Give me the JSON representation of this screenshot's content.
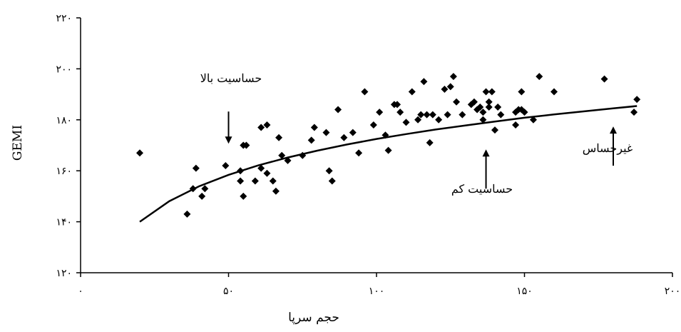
{
  "chart_data": {
    "type": "scatter",
    "xlabel": "حجم سرپا",
    "ylabel": "GEMI",
    "xlim": [
      0,
      200
    ],
    "ylim": [
      120,
      220
    ],
    "x_ticks": [
      0,
      50,
      100,
      150,
      200
    ],
    "y_ticks": [
      120,
      140,
      160,
      180,
      200,
      220
    ],
    "x_tick_labels": [
      "۰",
      "۵۰",
      "۱۰۰",
      "۱۵۰",
      "۲۰۰"
    ],
    "y_tick_labels": [
      "۱۲۰",
      "۱۴۰",
      "۱۶۰",
      "۱۸۰",
      "۲۰۰",
      "۲۲۰"
    ],
    "grid": false,
    "marker": "diamond",
    "points": [
      [
        20,
        167
      ],
      [
        36,
        143
      ],
      [
        38,
        153
      ],
      [
        39,
        161
      ],
      [
        41,
        150
      ],
      [
        42,
        153
      ],
      [
        49,
        162
      ],
      [
        54,
        160
      ],
      [
        54,
        156
      ],
      [
        55,
        150
      ],
      [
        55,
        170
      ],
      [
        56,
        170
      ],
      [
        59,
        156
      ],
      [
        61,
        177
      ],
      [
        61,
        161
      ],
      [
        63,
        178
      ],
      [
        63,
        159
      ],
      [
        65,
        156
      ],
      [
        66,
        152
      ],
      [
        67,
        173
      ],
      [
        68,
        166
      ],
      [
        70,
        164
      ],
      [
        75,
        166
      ],
      [
        78,
        172
      ],
      [
        79,
        177
      ],
      [
        83,
        175
      ],
      [
        84,
        160
      ],
      [
        85,
        156
      ],
      [
        87,
        184
      ],
      [
        89,
        173
      ],
      [
        92,
        175
      ],
      [
        94,
        167
      ],
      [
        96,
        191
      ],
      [
        99,
        178
      ],
      [
        101,
        183
      ],
      [
        103,
        174
      ],
      [
        104,
        168
      ],
      [
        106,
        186
      ],
      [
        107,
        186
      ],
      [
        108,
        183
      ],
      [
        110,
        179
      ],
      [
        112,
        191
      ],
      [
        114,
        180
      ],
      [
        115,
        182
      ],
      [
        116,
        195
      ],
      [
        117,
        182
      ],
      [
        118,
        171
      ],
      [
        119,
        182
      ],
      [
        121,
        180
      ],
      [
        123,
        192
      ],
      [
        124,
        182
      ],
      [
        125,
        193
      ],
      [
        126,
        197
      ],
      [
        127,
        187
      ],
      [
        129,
        182
      ],
      [
        132,
        186
      ],
      [
        133,
        187
      ],
      [
        134,
        184
      ],
      [
        135,
        185
      ],
      [
        136,
        183
      ],
      [
        136,
        180
      ],
      [
        137,
        191
      ],
      [
        138,
        185
      ],
      [
        138,
        187
      ],
      [
        139,
        191
      ],
      [
        140,
        176
      ],
      [
        141,
        185
      ],
      [
        142,
        182
      ],
      [
        147,
        178
      ],
      [
        147,
        183
      ],
      [
        148,
        184
      ],
      [
        149,
        184
      ],
      [
        149,
        191
      ],
      [
        150,
        183
      ],
      [
        153,
        180
      ],
      [
        155,
        197
      ],
      [
        160,
        191
      ],
      [
        177,
        196
      ],
      [
        187,
        183
      ],
      [
        188,
        188
      ]
    ],
    "trend_line": {
      "type": "logarithmic",
      "x": [
        20,
        30,
        40,
        50,
        60,
        70,
        80,
        90,
        100,
        110,
        120,
        130,
        140,
        150,
        160,
        170,
        180,
        188
      ],
      "y": [
        140.0,
        148.1,
        153.9,
        158.4,
        162.1,
        165.2,
        167.9,
        170.3,
        172.5,
        174.4,
        176.2,
        177.8,
        179.3,
        180.8,
        182.1,
        183.3,
        184.5,
        185.4
      ]
    },
    "annotations": [
      {
        "text": "حساسیت بالا",
        "arrow_direction": "down",
        "target": [
          50,
          174
        ]
      },
      {
        "text": "حساسیت کم",
        "arrow_direction": "up",
        "target": [
          137,
          174
        ]
      },
      {
        "text": "غیرحساس",
        "arrow_direction": "up",
        "target": [
          180,
          183
        ]
      }
    ]
  }
}
